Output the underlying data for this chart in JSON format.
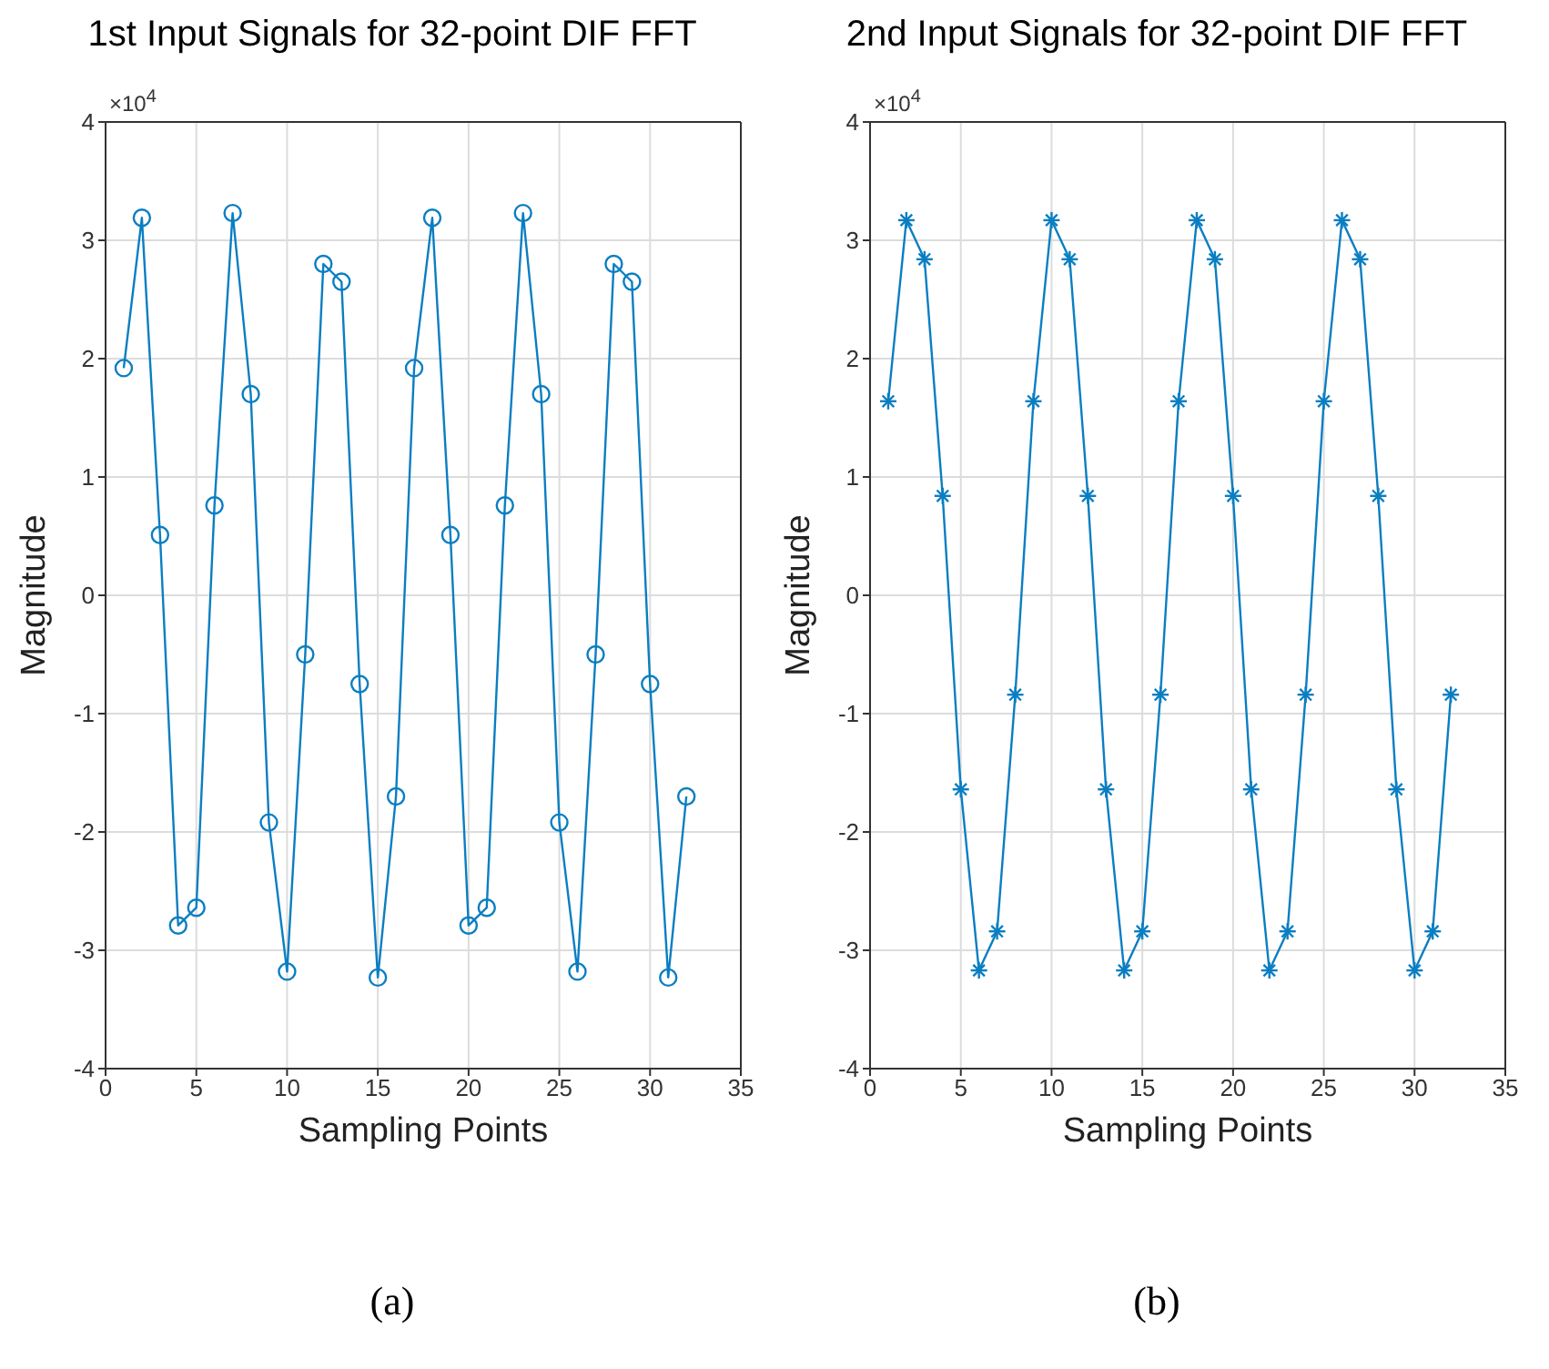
{
  "chart_data": [
    {
      "type": "line",
      "title": "1st Input Signals for 32-point DIF FFT",
      "xlabel": "Sampling Points",
      "ylabel": "Magnitude",
      "annotations": [
        "×10$^{4}$",
        "(a)"
      ],
      "x": [
        1,
        2,
        3,
        4,
        5,
        6,
        7,
        8,
        9,
        10,
        11,
        12,
        13,
        14,
        15,
        16,
        17,
        18,
        19,
        20,
        21,
        22,
        23,
        24,
        25,
        26,
        27,
        28,
        29,
        30,
        31,
        32
      ],
      "series": [
        {
          "color": "#0a7ec2",
          "values": [
            1.92,
            3.19,
            0.51,
            -2.79,
            -2.64,
            0.76,
            3.23,
            1.7,
            -1.92,
            -3.18,
            -0.5,
            2.8,
            2.65,
            -0.75,
            -3.23,
            -1.7,
            1.92,
            3.19,
            0.51,
            -2.79,
            -2.64,
            0.76,
            3.23,
            1.7,
            -1.92,
            -3.18,
            -0.5,
            2.8,
            2.65,
            -0.75,
            -3.23,
            -1.7
          ]
        }
      ],
      "xlim": [
        0,
        35
      ],
      "xticks": [
        0,
        5,
        10,
        15,
        20,
        25,
        30,
        35
      ],
      "ylim": [
        -4,
        4
      ],
      "yticks": [
        -4,
        -3,
        -2,
        -1,
        0,
        1,
        2,
        3,
        4
      ],
      "grid": true,
      "marker": "circle",
      "line_style": "solid"
    },
    {
      "type": "line",
      "title": "2nd Input Signals for 32-point DIF FFT",
      "xlabel": "Sampling Points",
      "ylabel": "Magnitude",
      "annotations": [
        "×10$^{4}$",
        "(b)"
      ],
      "x": [
        1,
        2,
        3,
        4,
        5,
        6,
        7,
        8,
        9,
        10,
        11,
        12,
        13,
        14,
        15,
        16,
        17,
        18,
        19,
        20,
        21,
        22,
        23,
        24,
        25,
        26,
        27,
        28,
        29,
        30,
        31,
        32
      ],
      "series": [
        {
          "color": "#0a7ec2",
          "values": [
            1.64,
            3.17,
            2.84,
            0.84,
            -1.64,
            -3.17,
            -2.84,
            -0.84,
            1.64,
            3.17,
            2.84,
            0.84,
            -1.64,
            -3.17,
            -2.84,
            -0.84,
            1.64,
            3.17,
            2.84,
            0.84,
            -1.64,
            -3.17,
            -2.84,
            -0.84,
            1.64,
            3.17,
            2.84,
            0.84,
            -1.64,
            -3.17,
            -2.84,
            -0.84
          ]
        }
      ],
      "xlim": [
        0,
        35
      ],
      "xticks": [
        0,
        5,
        10,
        15,
        20,
        25,
        30,
        35
      ],
      "ylim": [
        -4,
        4
      ],
      "yticks": [
        -4,
        -3,
        -2,
        -1,
        0,
        1,
        2,
        3,
        4
      ],
      "grid": true,
      "marker": "cross",
      "line_style": "solid"
    }
  ]
}
